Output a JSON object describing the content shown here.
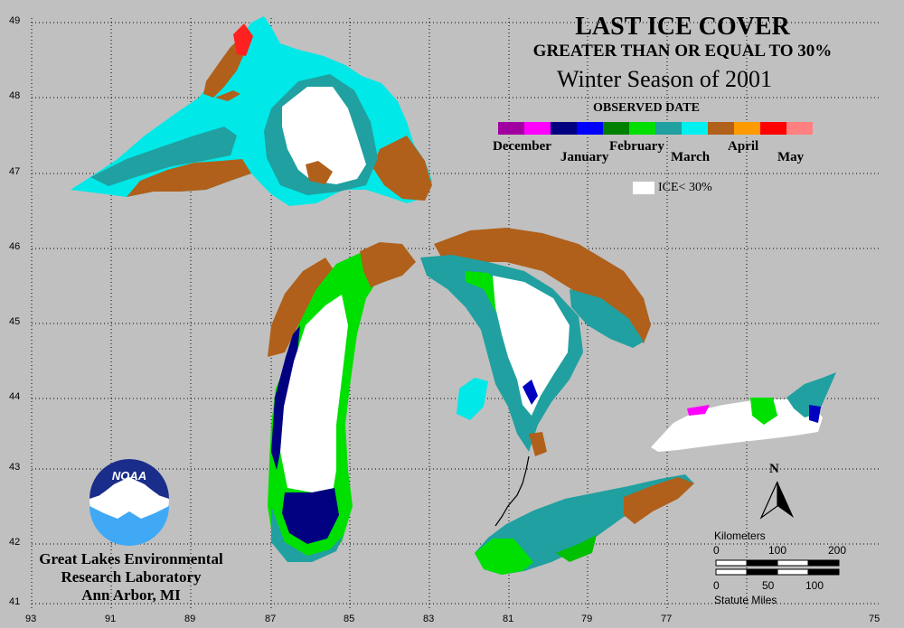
{
  "title": {
    "line1": "LAST ICE COVER",
    "line2": "GREATER THAN OR EQUAL TO 30%",
    "line3": "Winter Season of 2001"
  },
  "legend": {
    "heading": "OBSERVED DATE",
    "months": [
      "December",
      "January",
      "February",
      "March",
      "April",
      "May"
    ],
    "colors": [
      "#a000a0",
      "#ff00ff",
      "#000080",
      "#0000ff",
      "#008000",
      "#00e000",
      "#20a0a0",
      "#00f0f0",
      "#b0601a",
      "#ff9a00",
      "#ff0000",
      "#ff8080"
    ],
    "ice_label": "ICE< 30%",
    "ice_color": "#ffffff"
  },
  "map": {
    "lat_labels": [
      "49",
      "48",
      "47",
      "46",
      "45",
      "44",
      "43",
      "42",
      "41"
    ],
    "lon_labels": [
      "93",
      "91",
      "89",
      "87",
      "85",
      "83",
      "81",
      "79",
      "77",
      "75"
    ],
    "north_label": "N"
  },
  "scale": {
    "km_title": "Kilometers",
    "km_ticks": [
      "0",
      "100",
      "200"
    ],
    "mi_ticks": [
      "0",
      "50",
      "100"
    ],
    "mi_title": "Statute Miles"
  },
  "org": {
    "logo_text": "NOAA",
    "line1": "Great Lakes Environmental",
    "line2": "Research Laboratory",
    "line3": "Ann Arbor, MI"
  }
}
